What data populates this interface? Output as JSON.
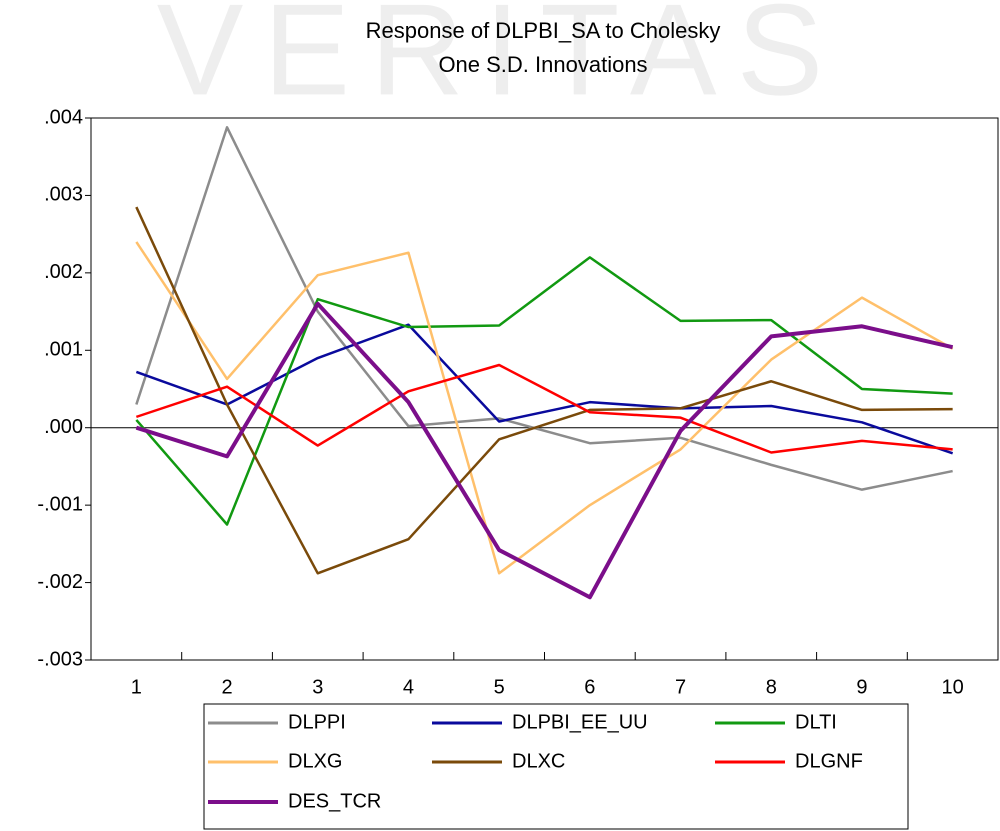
{
  "chart_data": {
    "type": "line",
    "watermark": "VERITAS",
    "title": "Response of DLPBI_SA to Cholesky",
    "subtitle": "One S.D. Innovations",
    "categories": [
      "1",
      "2",
      "3",
      "4",
      "5",
      "6",
      "7",
      "8",
      "9",
      "10"
    ],
    "ylim": [
      -0.003,
      0.004
    ],
    "yticks": [
      {
        "value": -0.003,
        "label": "-.003"
      },
      {
        "value": -0.002,
        "label": "-.002"
      },
      {
        "value": -0.001,
        "label": "-.001"
      },
      {
        "value": 0,
        "label": ".000"
      },
      {
        "value": 0.001,
        "label": ".001"
      },
      {
        "value": 0.002,
        "label": ".002"
      },
      {
        "value": 0.003,
        "label": ".003"
      },
      {
        "value": 0.004,
        "label": ".004"
      }
    ],
    "zero_line": true,
    "series": [
      {
        "name": "DLPPI",
        "color": "#8c8c8c",
        "values": [
          0.0003,
          0.00388,
          0.0015,
          2e-05,
          0.00012,
          -0.0002,
          -0.00013,
          -0.00048,
          -0.0008,
          -0.00056
        ]
      },
      {
        "name": "DLPBI_EE_UU",
        "color": "#0a0a9c",
        "values": [
          0.00072,
          0.0003,
          0.0009,
          0.00133,
          8e-05,
          0.00033,
          0.00025,
          0.00028,
          7e-05,
          -0.00033
        ]
      },
      {
        "name": "DLTI",
        "color": "#119911",
        "values": [
          0.0001,
          -0.00125,
          0.00166,
          0.0013,
          0.00132,
          0.0022,
          0.00138,
          0.00139,
          0.0005,
          0.00044
        ]
      },
      {
        "name": "DLXG",
        "color": "#ffc06b",
        "values": [
          0.0024,
          0.00063,
          0.00197,
          0.00226,
          -0.00188,
          -0.001,
          -0.00028,
          0.00088,
          0.00168,
          0.00102
        ]
      },
      {
        "name": "DLXC",
        "color": "#7a4a0a",
        "values": [
          0.00285,
          0.0003,
          -0.00188,
          -0.00144,
          -0.00015,
          0.00023,
          0.00025,
          0.0006,
          0.00023,
          0.00024
        ]
      },
      {
        "name": "DLGNF",
        "color": "#ff0000",
        "values": [
          0.00014,
          0.00053,
          -0.00023,
          0.00047,
          0.00081,
          0.0002,
          0.00013,
          -0.00032,
          -0.00017,
          -0.00028
        ]
      },
      {
        "name": "DES_TCR",
        "color": "#7b0e8a",
        "width": 4,
        "values": [
          0,
          -0.00037,
          0.0016,
          0.00033,
          -0.00158,
          -0.00219,
          -4e-05,
          0.00118,
          0.00131,
          0.00104
        ]
      }
    ]
  }
}
